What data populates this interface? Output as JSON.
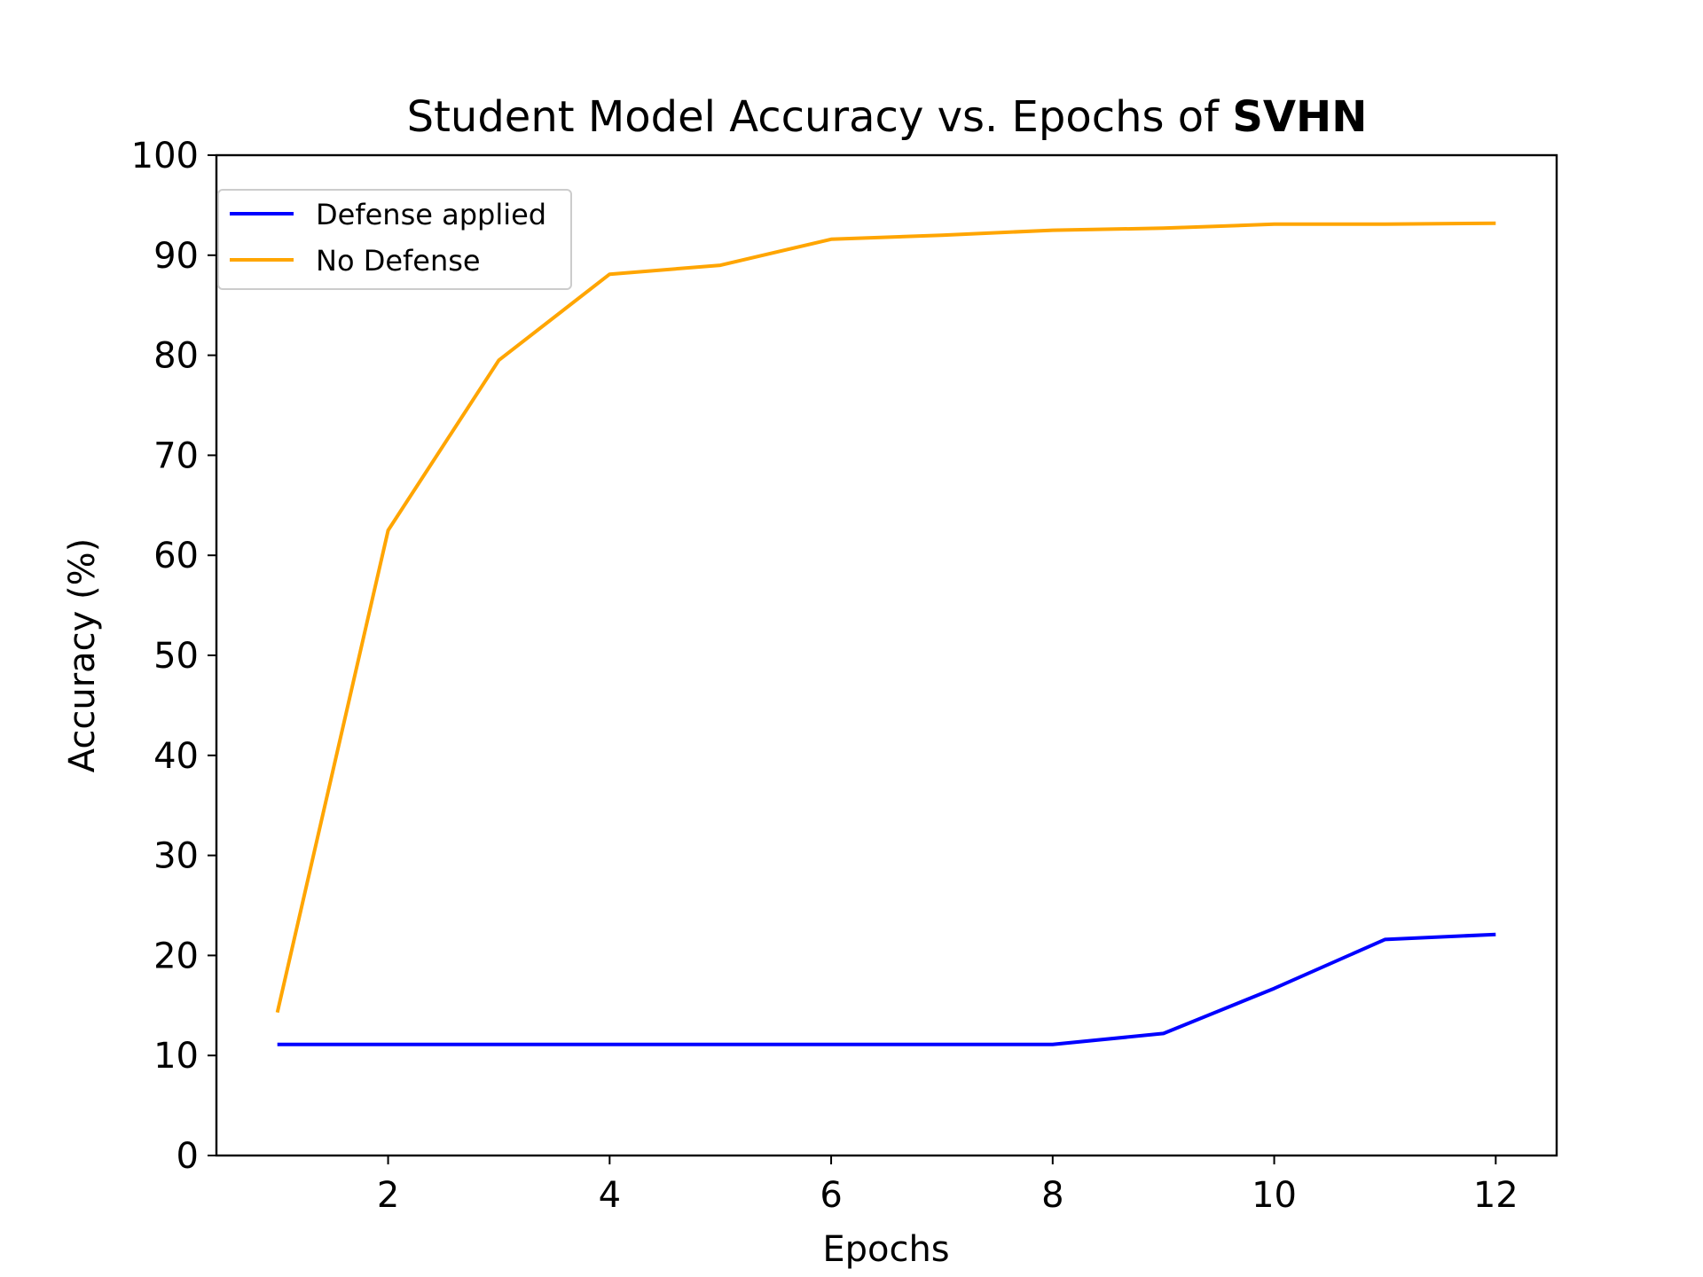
{
  "chart_data": {
    "type": "line",
    "title": "Student Model Accuracy vs. Epochs of ",
    "title_bold": "SVHN",
    "xlabel": "Epochs",
    "ylabel": "Accuracy (%)",
    "xlim": [
      0.45,
      12.55
    ],
    "ylim": [
      0,
      100
    ],
    "xticks": [
      2,
      4,
      6,
      8,
      10,
      12
    ],
    "yticks": [
      0,
      10,
      20,
      30,
      40,
      50,
      60,
      70,
      80,
      90,
      100
    ],
    "grid": false,
    "legend_position": "upper-left",
    "x": [
      1,
      2,
      3,
      4,
      5,
      6,
      7,
      8,
      9,
      10,
      11,
      12
    ],
    "series": [
      {
        "name": "Defense applied",
        "color": "#0000ff",
        "values": [
          11.1,
          11.1,
          11.1,
          11.1,
          11.1,
          11.1,
          11.1,
          11.1,
          12.2,
          16.7,
          21.6,
          22.1
        ]
      },
      {
        "name": "No Defense",
        "color": "#ffa500",
        "values": [
          14.3,
          62.5,
          79.5,
          88.1,
          89.0,
          91.6,
          92.0,
          92.5,
          92.7,
          93.1,
          93.1,
          93.2
        ]
      }
    ]
  }
}
